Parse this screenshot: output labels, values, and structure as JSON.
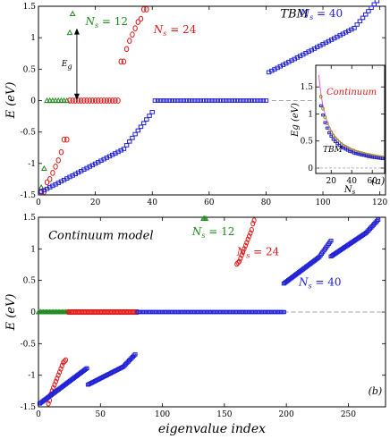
{
  "colors": {
    "ns12": "#1f8a1f",
    "ns24": "#e01b1b",
    "ns40": "#1f1fd6",
    "axis": "#000000",
    "dash": "#888888"
  },
  "chart_data": [
    {
      "type": "scatter",
      "panel_label": "(a)",
      "annotation": "TBM",
      "xlabel": "",
      "ylabel": "E (eV)",
      "xlim": [
        0,
        122
      ],
      "ylim": [
        -1.5,
        1.5
      ],
      "xticks": [
        0,
        20,
        40,
        60,
        80,
        100,
        120
      ],
      "yticks": [
        -1.5,
        -1,
        -0.5,
        0,
        0.5,
        1,
        1.5
      ],
      "xtick_labels": [
        "0",
        "20",
        "40",
        "60",
        "80",
        "100",
        "120"
      ],
      "ytick_labels": [
        "-1.5",
        "-1",
        "-0.5",
        "0",
        "0.5",
        "1",
        "1.5"
      ],
      "gap_label": "Eg",
      "series": [
        {
          "name": "Ns = 12",
          "marker": "triangle",
          "spec": "12",
          "x": [
            1,
            2,
            3,
            4,
            5,
            6,
            7,
            8,
            9,
            10,
            11,
            12
          ],
          "y": [
            -1.38,
            -1.08,
            0,
            0,
            0,
            0,
            0,
            0,
            0,
            0,
            1.08,
            1.38
          ]
        },
        {
          "name": "Ns = 24",
          "marker": "circle",
          "spec": "24"
        },
        {
          "name": "Ns = 40",
          "marker": "square",
          "spec": "40"
        }
      ]
    },
    {
      "type": "scatter",
      "panel_label": "(b)",
      "annotation": "Continuum model",
      "xlabel": "eigenvalue index",
      "ylabel": "E (eV)",
      "xlim": [
        0,
        280
      ],
      "ylim": [
        -1.5,
        1.5
      ],
      "xticks": [
        0,
        50,
        100,
        150,
        200,
        250
      ],
      "yticks": [
        -1.5,
        -1,
        -0.5,
        0,
        0.5,
        1,
        1.5
      ],
      "xtick_labels": [
        "0",
        "50",
        "100",
        "150",
        "200",
        "250"
      ],
      "ytick_labels": [
        "-1.5",
        "-1",
        "-0.5",
        "0",
        "0.5",
        "1",
        "1.5"
      ],
      "series": [
        {
          "name": "Ns = 12",
          "marker": "triangle",
          "spec": "12c"
        },
        {
          "name": "Ns = 24",
          "marker": "circle",
          "spec": "24c"
        },
        {
          "name": "Ns = 40",
          "marker": "square",
          "spec": "40c"
        }
      ]
    },
    {
      "type": "line",
      "inset": true,
      "xlabel": "Ns",
      "ylabel": "Eg (eV)",
      "xlim": [
        5,
        72
      ],
      "ylim": [
        -0.1,
        1.9
      ],
      "xticks": [
        20,
        40,
        60
      ],
      "yticks": [
        0,
        0.5,
        1,
        1.5
      ],
      "xtick_labels": [
        "20",
        "40",
        "60"
      ],
      "ytick_labels": [
        "0",
        "0.5",
        "1",
        "1.5"
      ],
      "labels": {
        "continuum": "Continuum",
        "tbm": "TBM"
      },
      "series": [
        {
          "name": "Continuum",
          "marker": "line",
          "x": [
            8,
            10,
            12,
            16,
            20,
            24,
            30,
            36,
            42,
            50,
            58,
            66,
            70
          ],
          "y": [
            1.72,
            1.38,
            1.15,
            0.86,
            0.69,
            0.57,
            0.46,
            0.38,
            0.33,
            0.28,
            0.24,
            0.21,
            0.2
          ]
        },
        {
          "name": "TBM-circles",
          "marker": "circle",
          "x": [
            10,
            12,
            14,
            16,
            18,
            20,
            22,
            24,
            26,
            28,
            30,
            32,
            34,
            36,
            38,
            40,
            42,
            44,
            46,
            48,
            50,
            52,
            54,
            56,
            58,
            60,
            62,
            64,
            66,
            68,
            70
          ],
          "y": [
            1.32,
            1.1,
            0.94,
            0.83,
            0.73,
            0.66,
            0.6,
            0.55,
            0.51,
            0.47,
            0.44,
            0.41,
            0.39,
            0.37,
            0.35,
            0.33,
            0.32,
            0.3,
            0.29,
            0.28,
            0.27,
            0.26,
            0.25,
            0.24,
            0.235,
            0.225,
            0.22,
            0.21,
            0.205,
            0.2,
            0.195
          ]
        },
        {
          "name": "TBM-squares",
          "marker": "square",
          "x": [
            10,
            12,
            14,
            16,
            18,
            20,
            22,
            24,
            26,
            28,
            30,
            32,
            34,
            36,
            38,
            40,
            42,
            44,
            46,
            48,
            50,
            52,
            54,
            56,
            58,
            60,
            62,
            64,
            66,
            68,
            70
          ],
          "y": [
            1.15,
            0.98,
            0.84,
            0.74,
            0.65,
            0.59,
            0.53,
            0.49,
            0.45,
            0.42,
            0.39,
            0.37,
            0.35,
            0.33,
            0.31,
            0.3,
            0.28,
            0.27,
            0.26,
            0.25,
            0.24,
            0.235,
            0.225,
            0.215,
            0.21,
            0.2,
            0.195,
            0.19,
            0.185,
            0.18,
            0.175
          ]
        }
      ]
    }
  ],
  "labels": {
    "ns12_label": "N",
    "ns12_sub": "s",
    "ns12_val": " = 12",
    "ns24_label": "N",
    "ns24_sub": "s",
    "ns24_val": " = 24",
    "ns40_label": "N",
    "ns40_sub": "s",
    "ns40_val": " = 40"
  }
}
